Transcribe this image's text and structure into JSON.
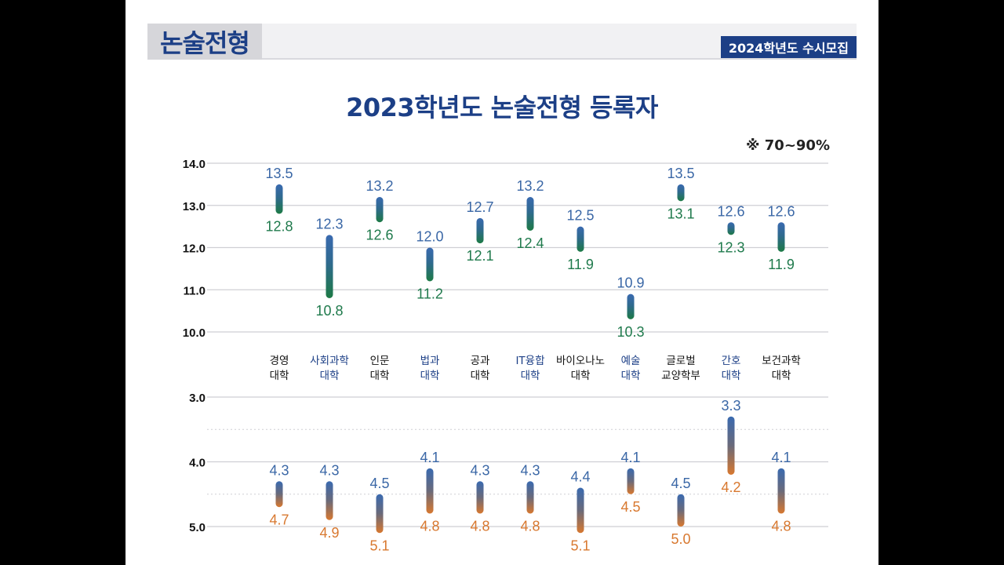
{
  "header": {
    "section_title": "논술전형",
    "admission_badge": "2024학년도 수시모집"
  },
  "colors": {
    "navy": "#1c3f86",
    "blue": "#3a67a6",
    "green": "#1f7a4c",
    "orange": "#d8782f",
    "grid": "#cfcfd4"
  },
  "chart_data": {
    "type": "range",
    "title": "2023학년도 논술전형 등록자",
    "range_note": "※ 70~90%",
    "categories": [
      {
        "lines": [
          "경영",
          "대학"
        ],
        "highlight": false
      },
      {
        "lines": [
          "사회과학",
          "대학"
        ],
        "highlight": true
      },
      {
        "lines": [
          "인문",
          "대학"
        ],
        "highlight": false
      },
      {
        "lines": [
          "법과",
          "대학"
        ],
        "highlight": true
      },
      {
        "lines": [
          "공과",
          "대학"
        ],
        "highlight": false
      },
      {
        "lines": [
          "IT융합",
          "대학"
        ],
        "highlight": true
      },
      {
        "lines": [
          "바이오나노",
          "대학"
        ],
        "highlight": false
      },
      {
        "lines": [
          "예술",
          "대학"
        ],
        "highlight": true
      },
      {
        "lines": [
          "글로벌",
          "교양학부"
        ],
        "highlight": false
      },
      {
        "lines": [
          "간호",
          "대학"
        ],
        "highlight": true
      },
      {
        "lines": [
          "보건과학",
          "대학"
        ],
        "highlight": false
      }
    ],
    "panels": [
      {
        "name": "top",
        "ylim": [
          10.0,
          14.0
        ],
        "ticks": [
          "14.0",
          "13.0",
          "12.0",
          "11.0",
          "10.0"
        ],
        "tick_values": [
          14,
          13,
          12,
          11,
          10
        ],
        "high": [
          "13.5",
          "12.3",
          "13.2",
          "12.0",
          "12.7",
          "13.2",
          "12.5",
          "10.9",
          "13.5",
          "12.6",
          "12.6"
        ],
        "low": [
          "12.8",
          "10.8",
          "12.6",
          "11.2",
          "12.1",
          "12.4",
          "11.9",
          "10.3",
          "13.1",
          "12.3",
          "11.9"
        ]
      },
      {
        "name": "bottom",
        "ylim": [
          3.0,
          5.0
        ],
        "inverted": true,
        "ticks": [
          "3.0",
          "4.0",
          "5.0"
        ],
        "tick_values": [
          3,
          4,
          5
        ],
        "dashed_values": [
          3.5,
          4.5
        ],
        "high": [
          "4.3",
          "4.3",
          "4.5",
          "4.1",
          "4.3",
          "4.3",
          "4.4",
          "4.1",
          "4.5",
          "3.3",
          "4.1"
        ],
        "low": [
          "4.7",
          "4.9",
          "5.1",
          "4.8",
          "4.8",
          "4.8",
          "5.1",
          "4.5",
          "5.0",
          "4.2",
          "4.8"
        ]
      }
    ]
  }
}
